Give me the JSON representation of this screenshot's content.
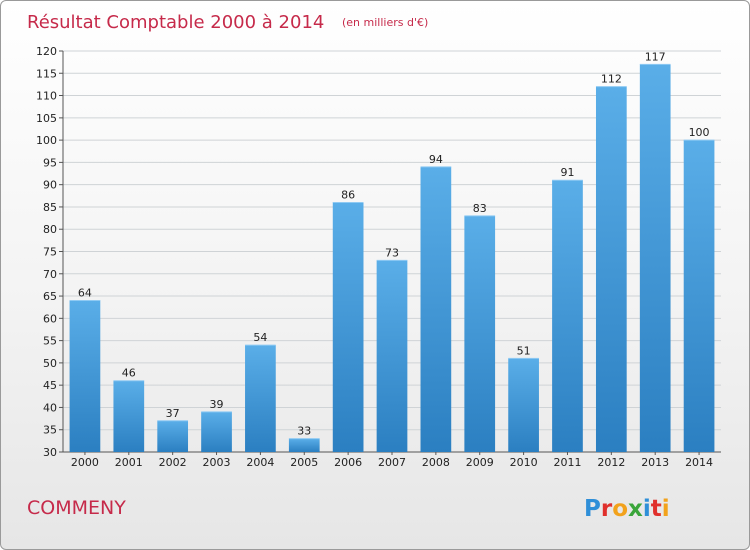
{
  "header": {
    "title": "Résultat Comptable 2000 à 2014",
    "subtitle": "(en milliers d'€)"
  },
  "footer": {
    "commune": "COMMENY",
    "brand": "Proxiti"
  },
  "colors": {
    "title": "#c62a4a",
    "bar_top": "#5aaee8",
    "bar_bottom": "#2b7fc1",
    "grid": "#cfd3d6"
  },
  "chart_data": {
    "type": "bar",
    "title": "Résultat Comptable 2000 à 2014",
    "subtitle": "(en milliers d'€)",
    "xlabel": "",
    "ylabel": "",
    "ylim": [
      30,
      120
    ],
    "yticks": [
      30,
      35,
      40,
      45,
      50,
      55,
      60,
      65,
      70,
      75,
      80,
      85,
      90,
      95,
      100,
      105,
      110,
      115,
      120
    ],
    "grid": true,
    "categories": [
      "2000",
      "2001",
      "2002",
      "2003",
      "2004",
      "2005",
      "2006",
      "2007",
      "2008",
      "2009",
      "2010",
      "2011",
      "2012",
      "2013",
      "2014"
    ],
    "values": [
      64,
      46,
      37,
      39,
      54,
      33,
      86,
      73,
      94,
      83,
      51,
      91,
      112,
      117,
      100
    ],
    "data_labels": true
  }
}
